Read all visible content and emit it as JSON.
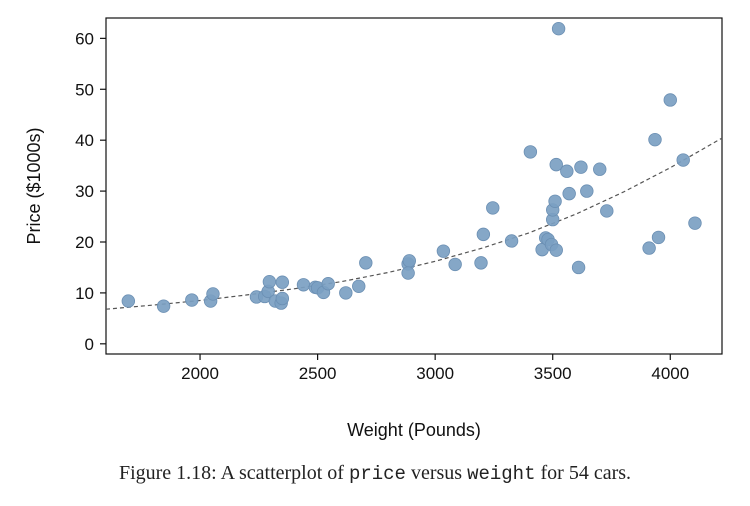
{
  "chart_data": {
    "type": "scatter",
    "xlabel": "Weight (Pounds)",
    "ylabel": "Price ($1000s)",
    "xlim": [
      1600,
      4220
    ],
    "ylim": [
      -2,
      64
    ],
    "xticks": [
      2000,
      2500,
      3000,
      3500,
      4000
    ],
    "yticks": [
      0,
      10,
      20,
      30,
      40,
      50,
      60
    ],
    "grid": false,
    "point_color": "#7b9fc2",
    "point_edge_color": "#6b8fb3",
    "trend_line": {
      "style": "dashed",
      "color": "#555555",
      "points": [
        {
          "x": 1600,
          "y": 6.8
        },
        {
          "x": 1800,
          "y": 7.6
        },
        {
          "x": 2000,
          "y": 8.5
        },
        {
          "x": 2200,
          "y": 9.6
        },
        {
          "x": 2400,
          "y": 10.8
        },
        {
          "x": 2600,
          "y": 12.2
        },
        {
          "x": 2800,
          "y": 14.0
        },
        {
          "x": 3000,
          "y": 16.2
        },
        {
          "x": 3200,
          "y": 18.8
        },
        {
          "x": 3400,
          "y": 21.8
        },
        {
          "x": 3600,
          "y": 25.5
        },
        {
          "x": 3800,
          "y": 29.8
        },
        {
          "x": 4000,
          "y": 34.6
        },
        {
          "x": 4220,
          "y": 40.4
        }
      ]
    },
    "points": [
      {
        "x": 1695,
        "y": 8.4
      },
      {
        "x": 1845,
        "y": 7.4
      },
      {
        "x": 1965,
        "y": 8.6
      },
      {
        "x": 2045,
        "y": 8.4
      },
      {
        "x": 2055,
        "y": 9.8
      },
      {
        "x": 2240,
        "y": 9.2
      },
      {
        "x": 2275,
        "y": 9.3
      },
      {
        "x": 2290,
        "y": 10.3
      },
      {
        "x": 2295,
        "y": 12.2
      },
      {
        "x": 2320,
        "y": 8.4
      },
      {
        "x": 2345,
        "y": 8.0
      },
      {
        "x": 2350,
        "y": 8.9
      },
      {
        "x": 2350,
        "y": 12.1
      },
      {
        "x": 2440,
        "y": 11.6
      },
      {
        "x": 2490,
        "y": 11.1
      },
      {
        "x": 2500,
        "y": 11.0
      },
      {
        "x": 2525,
        "y": 10.1
      },
      {
        "x": 2545,
        "y": 11.8
      },
      {
        "x": 2620,
        "y": 10.0
      },
      {
        "x": 2675,
        "y": 11.3
      },
      {
        "x": 2705,
        "y": 15.9
      },
      {
        "x": 2885,
        "y": 15.7
      },
      {
        "x": 2890,
        "y": 16.3
      },
      {
        "x": 2885,
        "y": 13.9
      },
      {
        "x": 3035,
        "y": 18.2
      },
      {
        "x": 3085,
        "y": 15.6
      },
      {
        "x": 3195,
        "y": 15.9
      },
      {
        "x": 3205,
        "y": 21.5
      },
      {
        "x": 3245,
        "y": 26.7
      },
      {
        "x": 3325,
        "y": 20.2
      },
      {
        "x": 3405,
        "y": 37.7
      },
      {
        "x": 3455,
        "y": 18.5
      },
      {
        "x": 3470,
        "y": 20.8
      },
      {
        "x": 3480,
        "y": 20.5
      },
      {
        "x": 3495,
        "y": 19.5
      },
      {
        "x": 3500,
        "y": 24.4
      },
      {
        "x": 3500,
        "y": 26.3
      },
      {
        "x": 3510,
        "y": 28.0
      },
      {
        "x": 3515,
        "y": 35.2
      },
      {
        "x": 3515,
        "y": 18.4
      },
      {
        "x": 3525,
        "y": 61.9
      },
      {
        "x": 3560,
        "y": 33.9
      },
      {
        "x": 3570,
        "y": 29.5
      },
      {
        "x": 3610,
        "y": 15.0
      },
      {
        "x": 3620,
        "y": 34.7
      },
      {
        "x": 3645,
        "y": 30.0
      },
      {
        "x": 3700,
        "y": 34.3
      },
      {
        "x": 3730,
        "y": 26.1
      },
      {
        "x": 3910,
        "y": 18.8
      },
      {
        "x": 3935,
        "y": 40.1
      },
      {
        "x": 3950,
        "y": 20.9
      },
      {
        "x": 4000,
        "y": 47.9
      },
      {
        "x": 4055,
        "y": 36.1
      },
      {
        "x": 4105,
        "y": 23.7
      }
    ]
  },
  "caption": {
    "prefix": "Figure 1.18: A scatterplot of ",
    "var1": "price",
    "middle": " versus ",
    "var2": "weight",
    "suffix": " for 54 cars."
  }
}
